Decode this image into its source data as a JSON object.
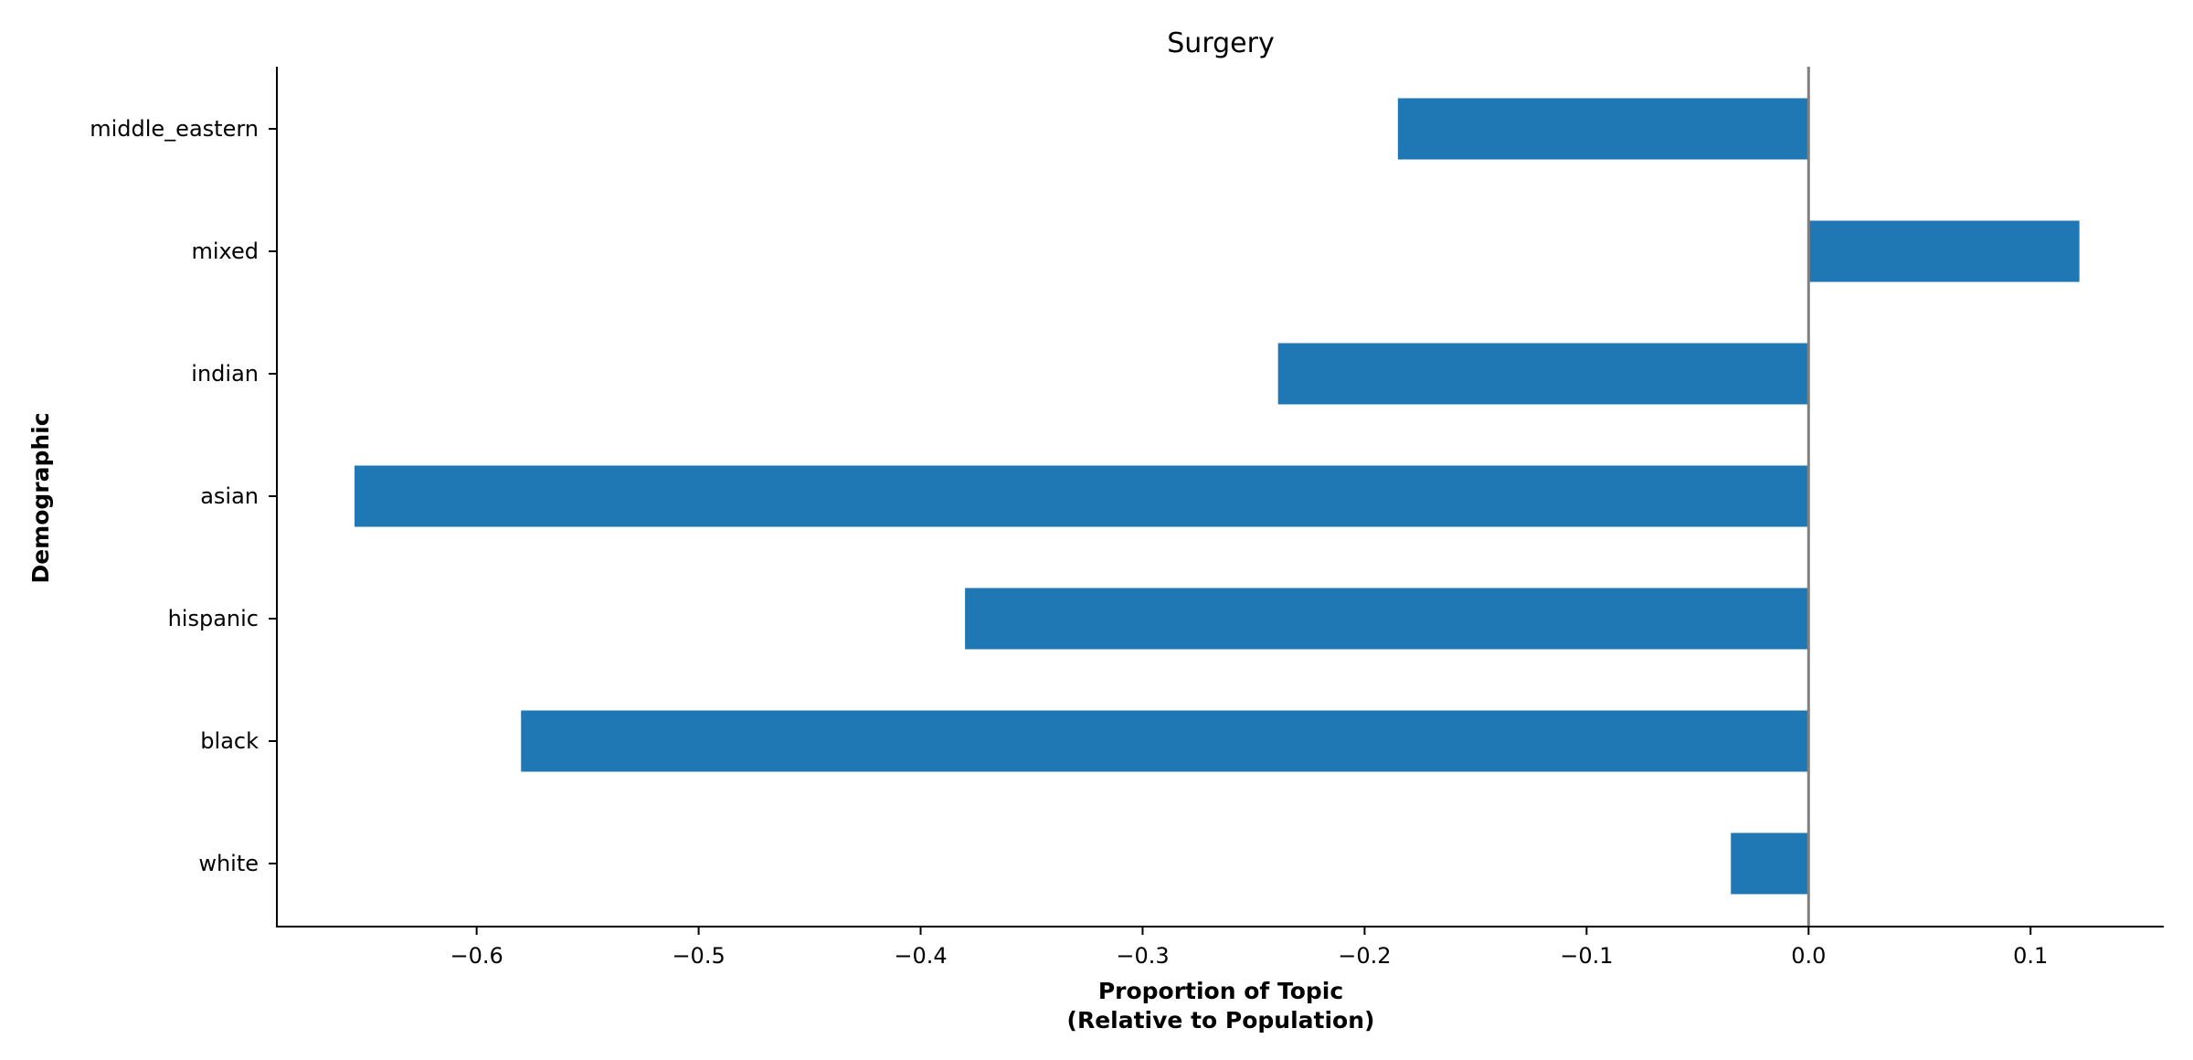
{
  "chart_data": {
    "type": "bar",
    "orientation": "horizontal",
    "title": "Surgery",
    "xlabel": [
      "Proportion of Topic",
      "(Relative to Population)"
    ],
    "ylabel": "Demographic",
    "categories": [
      "middle_eastern",
      "mixed",
      "indian",
      "asian",
      "hispanic",
      "black",
      "white"
    ],
    "values": [
      -0.185,
      0.122,
      -0.239,
      -0.655,
      -0.38,
      -0.58,
      -0.035
    ],
    "xlim": [
      -0.69,
      0.16
    ],
    "xticks": [
      -0.6,
      -0.5,
      -0.4,
      -0.3,
      -0.2,
      -0.1,
      0.0,
      0.1
    ],
    "xtick_labels": [
      "−0.6",
      "−0.5",
      "−0.4",
      "−0.3",
      "−0.2",
      "−0.1",
      "0.0",
      "0.1"
    ],
    "reference_line_x": 0.0,
    "bar_color": "#1f77b4",
    "reference_line_color": "#808080",
    "grid": false,
    "legend": "none"
  }
}
